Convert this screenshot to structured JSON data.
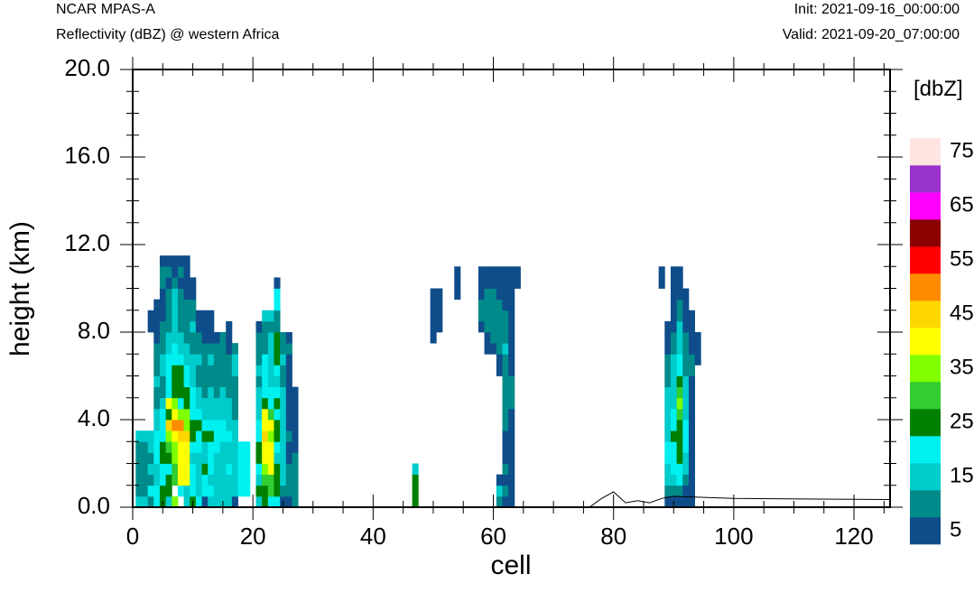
{
  "header": {
    "model": "NCAR MPAS-A",
    "field": "Reflectivity (dBZ) @ western Africa",
    "init": "Init: 2021-09-16_00:00:00",
    "valid": "Valid: 2021-09-20_07:00:00"
  },
  "chart_data": {
    "type": "heatmap",
    "xlabel": "cell",
    "ylabel": "height (km)",
    "xlim": [
      0,
      126
    ],
    "ylim": [
      0,
      20
    ],
    "x_ticks": [
      "0",
      "20",
      "40",
      "60",
      "80",
      "100",
      "120"
    ],
    "y_ticks": [
      "0.0",
      "4.0",
      "8.0",
      "12.0",
      "16.0",
      "20.0"
    ],
    "grid": false,
    "colorbar": {
      "title": "[dbZ]",
      "labels": [
        "5",
        "15",
        "25",
        "35",
        "45",
        "55",
        "65",
        "75"
      ],
      "colors": [
        "#0f4d8a",
        "#008a8a",
        "#00cccc",
        "#00f0f0",
        "#008000",
        "#32cd32",
        "#7fff00",
        "#ffff00",
        "#ffd700",
        "#ff8c00",
        "#ff0000",
        "#8b0000",
        "#ff00ff",
        "#9932cc",
        "#ffe4e1"
      ]
    },
    "cell_height_km": 0.5,
    "columns": [
      {
        "x": 1,
        "values": [
          3,
          2,
          2,
          2,
          2,
          2,
          3
        ]
      },
      {
        "x": 2,
        "values": [
          3,
          2,
          2,
          2,
          2,
          2,
          3
        ]
      },
      {
        "x": 3,
        "values": [
          2,
          4,
          2,
          3,
          2,
          3,
          3,
          0,
          0,
          0,
          0,
          0,
          0,
          0,
          0,
          0,
          1,
          1
        ]
      },
      {
        "x": 4,
        "values": [
          4,
          4,
          3,
          3,
          4,
          4,
          4,
          3,
          3,
          2,
          2,
          3,
          2,
          2,
          2,
          1,
          1,
          1,
          1
        ]
      },
      {
        "x": 5,
        "values": [
          5,
          5,
          4,
          4,
          5,
          5,
          4,
          4,
          4,
          3,
          2,
          2,
          3,
          3,
          2,
          2,
          2,
          1,
          1,
          1,
          2,
          2,
          1
        ]
      },
      {
        "x": 6,
        "values": [
          3,
          5,
          5,
          4,
          5,
          6,
          7,
          9,
          5,
          8,
          4,
          4,
          4,
          4,
          3,
          3,
          2,
          2,
          2,
          2,
          1,
          2,
          1
        ]
      },
      {
        "x": 7,
        "values": [
          7,
          0,
          6,
          6,
          7,
          7,
          8,
          10,
          8,
          7,
          5,
          5,
          5,
          4,
          4,
          3,
          3,
          3,
          3,
          3,
          2,
          1,
          1
        ]
      },
      {
        "x": 8,
        "values": [
          0,
          4,
          8,
          8,
          8,
          8,
          9,
          10,
          7,
          4,
          5,
          5,
          5,
          4,
          3,
          3,
          2,
          2,
          2,
          2,
          1,
          2,
          1
        ]
      },
      {
        "x": 9,
        "values": [
          3,
          3,
          8,
          8,
          8,
          8,
          9,
          7,
          7,
          5,
          5,
          4,
          4,
          3,
          3,
          2,
          2,
          2,
          2,
          1,
          1,
          1,
          1
        ]
      },
      {
        "x": 10,
        "values": [
          5,
          4,
          4,
          4,
          3,
          4,
          5,
          5,
          4,
          4,
          4,
          3,
          3,
          3,
          2,
          2,
          3,
          2,
          2,
          1,
          1
        ]
      },
      {
        "x": 11,
        "values": [
          4,
          3,
          3,
          3,
          3,
          4,
          4,
          5,
          4,
          3,
          3,
          2,
          2,
          3,
          2,
          2,
          1,
          1
        ]
      },
      {
        "x": 12,
        "values": [
          1,
          4,
          4,
          5,
          3,
          3,
          5,
          4,
          3,
          3,
          2,
          2,
          2,
          2,
          2,
          1,
          1,
          1
        ]
      },
      {
        "x": 13,
        "values": [
          3,
          4,
          3,
          4,
          4,
          4,
          5,
          4,
          3,
          3,
          3,
          2,
          2,
          3,
          2,
          1,
          1,
          1
        ]
      },
      {
        "x": 14,
        "values": [
          3,
          3,
          3,
          3,
          3,
          4,
          4,
          4,
          3,
          3,
          2,
          2,
          2,
          2,
          2,
          1
        ]
      },
      {
        "x": 15,
        "values": [
          3,
          3,
          3,
          3,
          3,
          3,
          4,
          4,
          3,
          3,
          3,
          2,
          2,
          2,
          2,
          2
        ]
      },
      {
        "x": 16,
        "values": [
          3,
          3,
          3,
          4,
          3,
          3,
          4,
          3,
          3,
          3,
          2,
          2,
          2,
          2,
          1,
          1,
          1
        ]
      },
      {
        "x": 17,
        "values": [
          1,
          3,
          3,
          3,
          3,
          3,
          3,
          3,
          2,
          2,
          2,
          2,
          3,
          3,
          2
        ]
      },
      {
        "x": 18,
        "values": [
          0,
          4,
          4,
          4,
          4,
          4,
          0,
          0,
          0,
          0,
          0,
          0,
          0,
          0,
          0,
          0
        ]
      },
      {
        "x": 19,
        "values": [
          0,
          4,
          4,
          4,
          4,
          4,
          0,
          0,
          0,
          0,
          0,
          0,
          0,
          0,
          0,
          0
        ]
      },
      {
        "x": 21,
        "values": [
          3,
          5,
          3,
          4,
          5,
          5,
          4,
          4,
          3,
          3,
          3,
          2,
          3,
          2,
          2,
          2,
          1
        ]
      },
      {
        "x": 22,
        "values": [
          5,
          5,
          6,
          7,
          8,
          8,
          9,
          8,
          8,
          5,
          4,
          4,
          4,
          4,
          2,
          2,
          2,
          3
        ]
      },
      {
        "x": 23,
        "values": [
          4,
          6,
          6,
          8,
          8,
          8,
          7,
          8,
          6,
          4,
          4,
          3,
          3,
          3,
          3,
          3,
          2,
          3
        ]
      },
      {
        "x": 24,
        "values": [
          4,
          5,
          5,
          5,
          3,
          4,
          5,
          5,
          4,
          5,
          4,
          3,
          4,
          5,
          5,
          5,
          2,
          2,
          4,
          4,
          1
        ]
      },
      {
        "x": 25,
        "values": [
          1,
          2,
          3,
          3,
          3,
          3,
          3,
          3,
          3,
          3,
          3,
          2,
          2,
          3,
          2,
          2
        ]
      },
      {
        "x": 26,
        "values": [
          1,
          2,
          2,
          2,
          1,
          1,
          2,
          1,
          1,
          1,
          1,
          1,
          1,
          1,
          2,
          1
        ]
      },
      {
        "x": 27,
        "values": [
          2,
          2,
          2,
          2,
          2,
          1,
          1,
          1,
          1,
          1,
          1
        ]
      },
      {
        "x": 47,
        "values": [
          5,
          5,
          5,
          3
        ]
      },
      {
        "x": 50,
        "values": [
          0,
          0,
          0,
          0,
          0,
          0,
          0,
          0,
          0,
          0,
          0,
          0,
          0,
          0,
          0,
          1,
          1,
          1,
          1,
          1
        ]
      },
      {
        "x": 51,
        "values": [
          0,
          0,
          0,
          0,
          0,
          0,
          0,
          0,
          0,
          0,
          0,
          0,
          0,
          0,
          0,
          0,
          1,
          1,
          1,
          1
        ]
      },
      {
        "x": 54,
        "values": [
          0,
          0,
          0,
          0,
          0,
          0,
          0,
          0,
          0,
          0,
          0,
          0,
          0,
          0,
          0,
          0,
          0,
          0,
          0,
          1,
          1,
          1
        ]
      },
      {
        "x": 58,
        "values": [
          0,
          0,
          0,
          0,
          0,
          0,
          0,
          0,
          0,
          0,
          0,
          0,
          0,
          0,
          0,
          0,
          1,
          2,
          2,
          1,
          1,
          1
        ]
      },
      {
        "x": 59,
        "values": [
          0,
          0,
          0,
          0,
          0,
          0,
          0,
          0,
          0,
          0,
          0,
          0,
          0,
          0,
          1,
          1,
          2,
          2,
          2,
          2,
          1,
          1
        ]
      },
      {
        "x": 60,
        "values": [
          0,
          0,
          0,
          0,
          0,
          0,
          0,
          0,
          0,
          0,
          0,
          0,
          0,
          0,
          1,
          2,
          2,
          2,
          2,
          2,
          1,
          1
        ]
      },
      {
        "x": 61,
        "values": [
          2,
          3,
          1,
          0,
          0,
          0,
          0,
          0,
          0,
          0,
          0,
          0,
          1,
          1,
          2,
          2,
          2,
          2,
          2,
          1,
          1,
          1
        ]
      },
      {
        "x": 62,
        "values": [
          1,
          2,
          1,
          2,
          1,
          1,
          1,
          2,
          2,
          2,
          2,
          2,
          2,
          2,
          3,
          2,
          2,
          2,
          1,
          1,
          1,
          1
        ]
      },
      {
        "x": 63,
        "values": [
          1,
          1,
          1,
          1,
          1,
          1,
          1,
          1,
          1,
          2,
          2,
          2,
          1,
          1,
          1,
          1,
          1,
          1,
          1,
          1,
          1,
          1
        ]
      },
      {
        "x": 64,
        "values": [
          0,
          0,
          0,
          0,
          0,
          0,
          0,
          0,
          0,
          0,
          0,
          0,
          0,
          0,
          0,
          0,
          0,
          0,
          0,
          0,
          1,
          1
        ]
      },
      {
        "x": 88,
        "values": [
          0,
          0,
          0,
          0,
          0,
          0,
          0,
          0,
          0,
          0,
          0,
          0,
          0,
          0,
          0,
          0,
          0,
          0,
          0,
          0,
          1,
          1
        ]
      },
      {
        "x": 89,
        "values": [
          1,
          2,
          3,
          3,
          4,
          4,
          3,
          3,
          3,
          3,
          3,
          2,
          2,
          2,
          1,
          1,
          1
        ]
      },
      {
        "x": 90,
        "values": [
          1,
          2,
          3,
          4,
          4,
          4,
          5,
          4,
          4,
          3,
          3,
          3,
          3,
          3,
          2,
          2,
          1,
          1,
          1,
          1,
          1,
          1
        ]
      },
      {
        "x": 91,
        "values": [
          1,
          2,
          4,
          4,
          5,
          5,
          5,
          5,
          6,
          7,
          6,
          5,
          4,
          4,
          3,
          3,
          3,
          2,
          2,
          1,
          1,
          1
        ]
      },
      {
        "x": 92,
        "values": [
          1,
          1,
          2,
          3,
          3,
          4,
          4,
          4,
          3,
          3,
          3,
          3,
          2,
          2,
          2,
          2,
          1,
          1,
          1,
          1
        ]
      },
      {
        "x": 93,
        "values": [
          1,
          1,
          1,
          1,
          1,
          1,
          1,
          1,
          1,
          1,
          1,
          1,
          2,
          2,
          1,
          1,
          1,
          1
        ]
      },
      {
        "x": 94,
        "values": [
          0,
          0,
          0,
          0,
          0,
          0,
          0,
          0,
          0,
          0,
          0,
          0,
          0,
          1,
          1,
          1
        ]
      }
    ],
    "terrain": {
      "x": [
        0,
        76,
        78,
        80,
        82,
        84,
        86,
        88,
        90,
        100,
        126
      ],
      "y": [
        0,
        0,
        0.4,
        0.7,
        0.2,
        0.3,
        0.2,
        0.4,
        0.5,
        0.4,
        0.35
      ]
    }
  }
}
